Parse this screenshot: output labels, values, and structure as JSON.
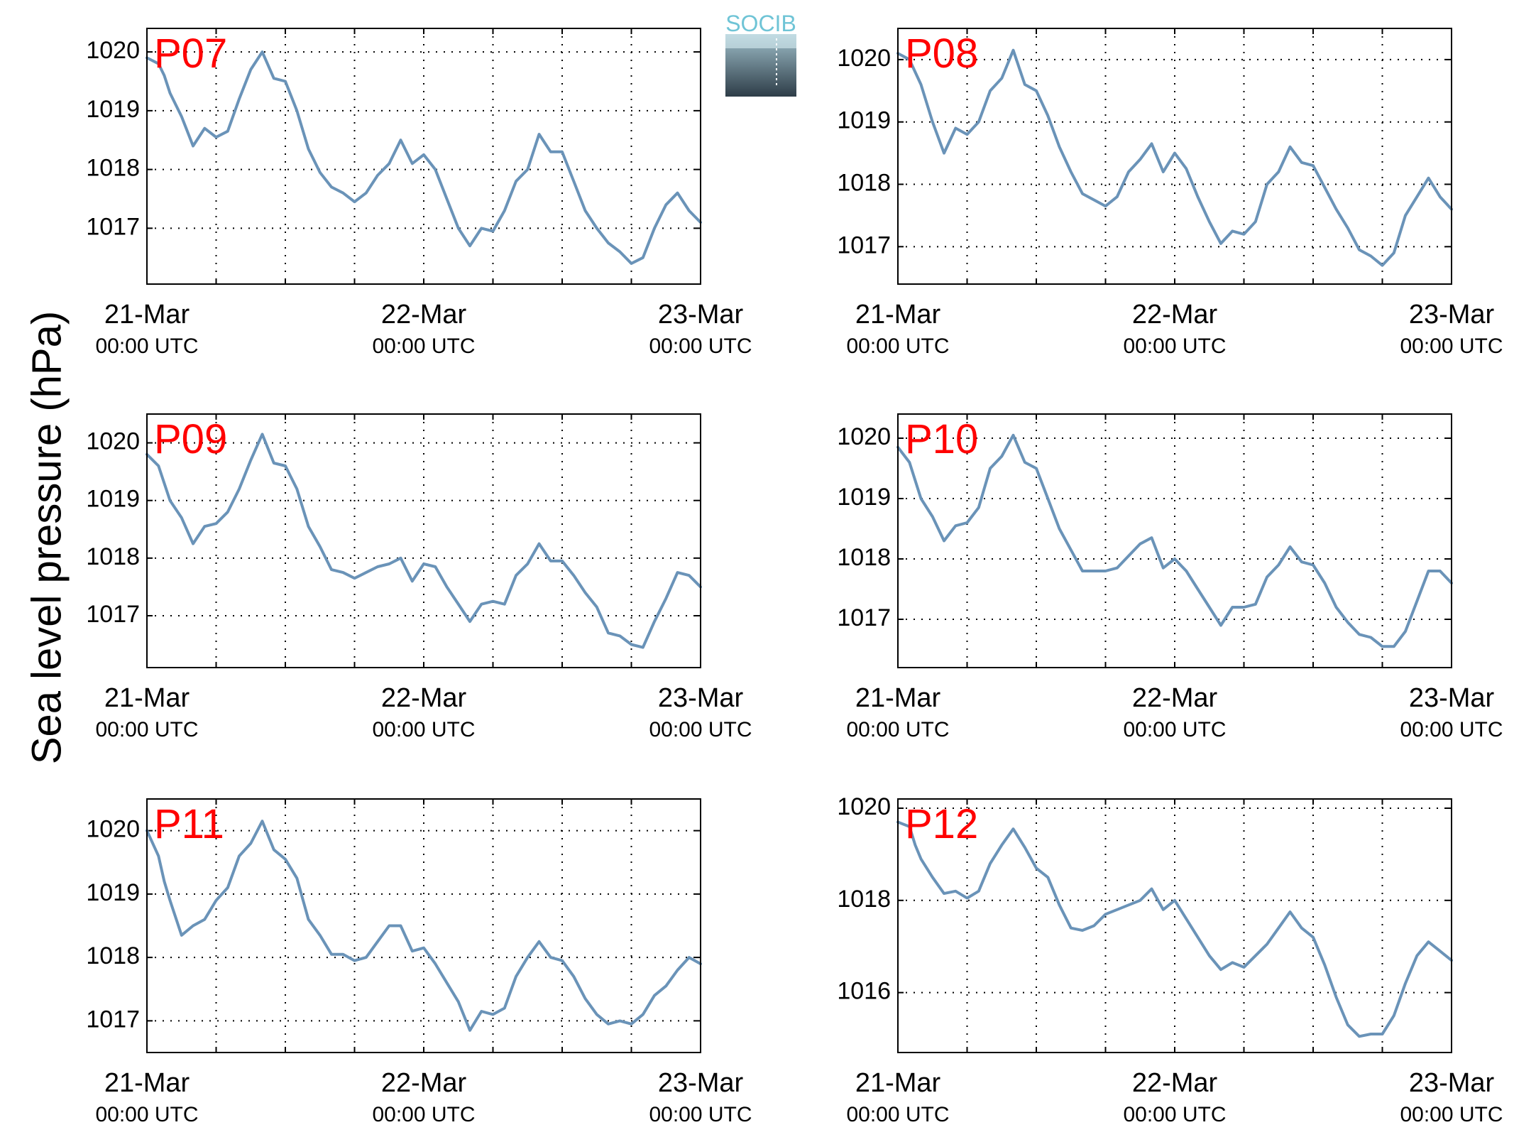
{
  "figure": {
    "ylabel": "Sea level pressure (hPa)",
    "logo_text": "SOCIB"
  },
  "colors": {
    "line": "#6a93b8",
    "panel_label": "#ff0000",
    "grid": "#000000",
    "logo_top": "#6fc4d6",
    "logo_bottom": "#2e3d48"
  },
  "chart_data": [
    {
      "type": "line",
      "panel": "P07",
      "xlabel": "",
      "ylabel": "",
      "x_ticks": [
        {
          "date": "21-Mar",
          "time": "00:00 UTC"
        },
        {
          "date": "22-Mar",
          "time": "00:00 UTC"
        },
        {
          "date": "23-Mar",
          "time": "00:00 UTC"
        }
      ],
      "xlim_hours": [
        0,
        48
      ],
      "ylim": [
        1016.05,
        1020.4
      ],
      "yticks": [
        1017,
        1018,
        1019,
        1020
      ],
      "grid": true,
      "series": [
        {
          "x_hours": [
            0,
            1,
            1.5,
            2,
            3,
            4,
            5,
            6,
            7,
            8,
            9,
            10,
            11,
            12,
            13,
            14,
            15,
            16,
            17,
            18,
            19,
            20,
            21,
            22,
            23,
            24,
            25,
            26,
            27,
            28,
            29,
            30,
            31,
            32,
            33,
            34,
            35,
            36,
            37,
            38,
            39,
            40,
            41,
            42,
            43,
            44,
            45,
            46,
            47,
            48
          ],
          "values": [
            1019.9,
            1019.8,
            1019.6,
            1019.3,
            1018.9,
            1018.4,
            1018.7,
            1018.55,
            1018.65,
            1019.2,
            1019.7,
            1020.0,
            1019.55,
            1019.5,
            1019.0,
            1018.35,
            1017.95,
            1017.7,
            1017.6,
            1017.45,
            1017.6,
            1017.9,
            1018.1,
            1018.5,
            1018.1,
            1018.25,
            1018.0,
            1017.5,
            1017.0,
            1016.7,
            1017.0,
            1016.95,
            1017.3,
            1017.8,
            1018.0,
            1018.6,
            1018.3,
            1018.3,
            1017.8,
            1017.3,
            1017.0,
            1016.75,
            1016.6,
            1016.4,
            1016.5,
            1017.0,
            1017.4,
            1017.6,
            1017.3,
            1017.1
          ]
        }
      ]
    },
    {
      "type": "line",
      "panel": "P08",
      "xlabel": "",
      "ylabel": "",
      "x_ticks": [
        {
          "date": "21-Mar",
          "time": "00:00 UTC"
        },
        {
          "date": "22-Mar",
          "time": "00:00 UTC"
        },
        {
          "date": "23-Mar",
          "time": "00:00 UTC"
        }
      ],
      "xlim_hours": [
        0,
        48
      ],
      "ylim": [
        1016.4,
        1020.5
      ],
      "yticks": [
        1017,
        1018,
        1019,
        1020
      ],
      "grid": true,
      "series": [
        {
          "x_hours": [
            0,
            1,
            1.5,
            2,
            3,
            4,
            5,
            6,
            7,
            8,
            9,
            10,
            11,
            12,
            13,
            14,
            15,
            16,
            17,
            18,
            19,
            20,
            21,
            22,
            23,
            24,
            25,
            26,
            27,
            28,
            29,
            30,
            31,
            32,
            33,
            34,
            35,
            36,
            37,
            38,
            39,
            40,
            41,
            42,
            43,
            44,
            45,
            46,
            47,
            48
          ],
          "values": [
            1020.1,
            1020.0,
            1019.8,
            1019.6,
            1019.0,
            1018.5,
            1018.9,
            1018.8,
            1019.0,
            1019.5,
            1019.7,
            1020.15,
            1019.6,
            1019.5,
            1019.1,
            1018.6,
            1018.2,
            1017.85,
            1017.75,
            1017.65,
            1017.8,
            1018.2,
            1018.4,
            1018.65,
            1018.2,
            1018.5,
            1018.25,
            1017.8,
            1017.4,
            1017.05,
            1017.25,
            1017.2,
            1017.4,
            1018.0,
            1018.2,
            1018.6,
            1018.35,
            1018.3,
            1017.95,
            1017.6,
            1017.3,
            1016.95,
            1016.85,
            1016.7,
            1016.9,
            1017.5,
            1017.8,
            1018.1,
            1017.8,
            1017.6
          ]
        }
      ]
    },
    {
      "type": "line",
      "panel": "P09",
      "xlabel": "",
      "ylabel": "",
      "x_ticks": [
        {
          "date": "21-Mar",
          "time": "00:00 UTC"
        },
        {
          "date": "22-Mar",
          "time": "00:00 UTC"
        },
        {
          "date": "23-Mar",
          "time": "00:00 UTC"
        }
      ],
      "xlim_hours": [
        0,
        48
      ],
      "ylim": [
        1016.1,
        1020.5
      ],
      "yticks": [
        1017,
        1018,
        1019,
        1020
      ],
      "grid": true,
      "series": [
        {
          "x_hours": [
            0,
            1,
            1.5,
            2,
            3,
            4,
            5,
            6,
            7,
            8,
            9,
            10,
            11,
            12,
            13,
            14,
            15,
            16,
            17,
            18,
            19,
            20,
            21,
            22,
            23,
            24,
            25,
            26,
            27,
            28,
            29,
            30,
            31,
            32,
            33,
            34,
            35,
            36,
            37,
            38,
            39,
            40,
            41,
            42,
            43,
            44,
            45,
            46,
            47,
            48
          ],
          "values": [
            1019.8,
            1019.6,
            1019.3,
            1019.0,
            1018.7,
            1018.25,
            1018.55,
            1018.6,
            1018.8,
            1019.2,
            1019.7,
            1020.15,
            1019.65,
            1019.6,
            1019.2,
            1018.55,
            1018.2,
            1017.8,
            1017.75,
            1017.65,
            1017.75,
            1017.85,
            1017.9,
            1018.0,
            1017.6,
            1017.9,
            1017.85,
            1017.5,
            1017.2,
            1016.9,
            1017.2,
            1017.25,
            1017.2,
            1017.7,
            1017.9,
            1018.25,
            1017.95,
            1017.95,
            1017.7,
            1017.4,
            1017.15,
            1016.7,
            1016.65,
            1016.5,
            1016.45,
            1016.9,
            1017.3,
            1017.75,
            1017.7,
            1017.5
          ]
        }
      ]
    },
    {
      "type": "line",
      "panel": "P10",
      "xlabel": "",
      "ylabel": "",
      "x_ticks": [
        {
          "date": "21-Mar",
          "time": "00:00 UTC"
        },
        {
          "date": "22-Mar",
          "time": "00:00 UTC"
        },
        {
          "date": "23-Mar",
          "time": "00:00 UTC"
        }
      ],
      "xlim_hours": [
        0,
        48
      ],
      "ylim": [
        1016.2,
        1020.4
      ],
      "yticks": [
        1017,
        1018,
        1019,
        1020
      ],
      "grid": true,
      "series": [
        {
          "x_hours": [
            0,
            1,
            1.5,
            2,
            3,
            4,
            5,
            6,
            7,
            8,
            9,
            10,
            11,
            12,
            13,
            14,
            15,
            16,
            17,
            18,
            19,
            20,
            21,
            22,
            23,
            24,
            25,
            26,
            27,
            28,
            29,
            30,
            31,
            32,
            33,
            34,
            35,
            36,
            37,
            38,
            39,
            40,
            41,
            42,
            43,
            44,
            45,
            46,
            47,
            48
          ],
          "values": [
            1019.85,
            1019.6,
            1019.3,
            1019.0,
            1018.7,
            1018.3,
            1018.55,
            1018.6,
            1018.85,
            1019.5,
            1019.7,
            1020.05,
            1019.6,
            1019.5,
            1019.0,
            1018.5,
            1018.15,
            1017.8,
            1017.8,
            1017.8,
            1017.85,
            1018.05,
            1018.25,
            1018.35,
            1017.85,
            1018.0,
            1017.8,
            1017.5,
            1017.2,
            1016.9,
            1017.2,
            1017.2,
            1017.25,
            1017.7,
            1017.9,
            1018.2,
            1017.95,
            1017.9,
            1017.6,
            1017.2,
            1016.95,
            1016.75,
            1016.7,
            1016.55,
            1016.55,
            1016.8,
            1017.3,
            1017.8,
            1017.8,
            1017.6
          ]
        }
      ]
    },
    {
      "type": "line",
      "panel": "P11",
      "xlabel": "",
      "ylabel": "",
      "x_ticks": [
        {
          "date": "21-Mar",
          "time": "00:00 UTC"
        },
        {
          "date": "22-Mar",
          "time": "00:00 UTC"
        },
        {
          "date": "23-Mar",
          "time": "00:00 UTC"
        }
      ],
      "xlim_hours": [
        0,
        48
      ],
      "ylim": [
        1016.5,
        1020.5
      ],
      "yticks": [
        1017,
        1018,
        1019,
        1020
      ],
      "grid": true,
      "series": [
        {
          "x_hours": [
            0,
            1,
            1.5,
            2,
            3,
            4,
            5,
            6,
            7,
            8,
            9,
            10,
            11,
            12,
            13,
            14,
            15,
            16,
            17,
            18,
            19,
            20,
            21,
            22,
            23,
            24,
            25,
            26,
            27,
            28,
            29,
            30,
            31,
            32,
            33,
            34,
            35,
            36,
            37,
            38,
            39,
            40,
            41,
            42,
            43,
            44,
            45,
            46,
            47,
            48
          ],
          "values": [
            1020.0,
            1019.6,
            1019.2,
            1018.9,
            1018.35,
            1018.5,
            1018.6,
            1018.9,
            1019.1,
            1019.6,
            1019.8,
            1020.15,
            1019.7,
            1019.55,
            1019.25,
            1018.6,
            1018.35,
            1018.05,
            1018.05,
            1017.95,
            1018.0,
            1018.25,
            1018.5,
            1018.5,
            1018.1,
            1018.15,
            1017.9,
            1017.6,
            1017.3,
            1016.85,
            1017.15,
            1017.1,
            1017.2,
            1017.7,
            1018.0,
            1018.25,
            1018.0,
            1017.95,
            1017.7,
            1017.35,
            1017.1,
            1016.95,
            1017.0,
            1016.95,
            1017.1,
            1017.4,
            1017.55,
            1017.8,
            1018.0,
            1017.9
          ]
        }
      ]
    },
    {
      "type": "line",
      "panel": "P12",
      "xlabel": "",
      "ylabel": "",
      "x_ticks": [
        {
          "date": "21-Mar",
          "time": "00:00 UTC"
        },
        {
          "date": "22-Mar",
          "time": "00:00 UTC"
        },
        {
          "date": "23-Mar",
          "time": "00:00 UTC"
        }
      ],
      "xlim_hours": [
        0,
        48
      ],
      "ylim": [
        1014.7,
        1020.2
      ],
      "yticks": [
        1016,
        1018,
        1020
      ],
      "grid": true,
      "series": [
        {
          "x_hours": [
            0,
            1,
            1.5,
            2,
            3,
            4,
            5,
            6,
            7,
            8,
            9,
            10,
            11,
            12,
            13,
            14,
            15,
            16,
            17,
            18,
            19,
            20,
            21,
            22,
            23,
            24,
            25,
            26,
            27,
            28,
            29,
            30,
            31,
            32,
            33,
            34,
            35,
            36,
            37,
            38,
            39,
            40,
            41,
            42,
            43,
            44,
            45,
            46,
            47,
            48
          ],
          "values": [
            1019.7,
            1019.6,
            1019.2,
            1018.9,
            1018.5,
            1018.15,
            1018.2,
            1018.05,
            1018.2,
            1018.8,
            1019.2,
            1019.55,
            1019.15,
            1018.7,
            1018.5,
            1017.9,
            1017.4,
            1017.35,
            1017.45,
            1017.7,
            1017.8,
            1017.9,
            1018.0,
            1018.25,
            1017.8,
            1018.0,
            1017.6,
            1017.2,
            1016.8,
            1016.5,
            1016.65,
            1016.55,
            1016.8,
            1017.05,
            1017.4,
            1017.75,
            1017.4,
            1017.2,
            1016.6,
            1015.9,
            1015.3,
            1015.05,
            1015.1,
            1015.1,
            1015.5,
            1016.2,
            1016.8,
            1017.1,
            1016.9,
            1016.7
          ]
        }
      ]
    }
  ]
}
